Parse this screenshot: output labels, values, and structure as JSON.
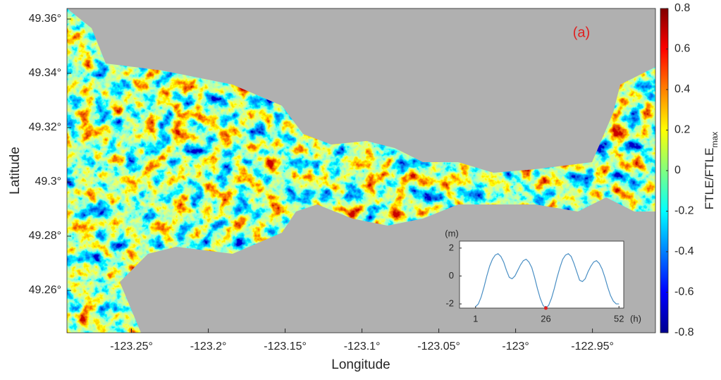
{
  "chart_data": [
    {
      "type": "heatmap",
      "title": "(a)",
      "x_label": "Longitude",
      "y_label": "Latitude",
      "xlim": [
        -123.292,
        -122.909
      ],
      "ylim": [
        49.2444,
        49.3639
      ],
      "xticks": [
        {
          "value": -123.25,
          "label": "-123.25°"
        },
        {
          "value": -123.2,
          "label": "-123.2°"
        },
        {
          "value": -123.15,
          "label": "-123.15°"
        },
        {
          "value": -123.1,
          "label": "-123.1°"
        },
        {
          "value": -123.05,
          "label": "-123.05°"
        },
        {
          "value": -123,
          "label": "-123°"
        },
        {
          "value": -122.95,
          "label": "-122.95°"
        }
      ],
      "yticks": [
        {
          "value": 49.26,
          "label": "49.26°"
        },
        {
          "value": 49.28,
          "label": "49.28°"
        },
        {
          "value": 49.3,
          "label": "49.3°"
        },
        {
          "value": 49.32,
          "label": "49.32°"
        },
        {
          "value": 49.34,
          "label": "49.34°"
        },
        {
          "value": 49.36,
          "label": "49.36°"
        }
      ],
      "colorbar": {
        "label": "FTLE/FTLE",
        "label_sub": "max",
        "lim": [
          -0.8,
          0.8
        ],
        "ticks": [
          -0.8,
          -0.6,
          -0.4,
          -0.2,
          0,
          0.2,
          0.4,
          0.6,
          0.8
        ],
        "colors": [
          "#00008f",
          "#0000ff",
          "#0080ff",
          "#00ffff",
          "#80ff80",
          "#ffff00",
          "#ff8000",
          "#ff0000",
          "#800000"
        ]
      }
    },
    {
      "type": "line",
      "y_unit": "(m)",
      "x_unit": "(h)",
      "x": [
        1,
        2,
        3,
        4,
        5,
        6,
        7,
        8,
        9,
        10,
        11,
        12,
        13,
        14,
        15,
        16,
        17,
        18,
        19,
        20,
        21,
        22,
        23,
        24,
        25,
        26,
        27,
        28,
        29,
        30,
        31,
        32,
        33,
        34,
        35,
        36,
        37,
        38,
        39,
        40,
        41,
        42,
        43,
        44,
        45,
        46,
        47,
        48,
        49,
        50,
        51,
        52
      ],
      "series": [
        {
          "color": "#4a8fc4",
          "values": [
            -2.2,
            -2.0,
            -1.5,
            -0.8,
            0.0,
            0.7,
            1.2,
            1.5,
            1.6,
            1.4,
            1.0,
            0.4,
            -0.1,
            -0.2,
            0.0,
            0.4,
            0.8,
            1.1,
            1.2,
            1.0,
            0.6,
            -0.1,
            -0.9,
            -1.6,
            -2.1,
            -2.3,
            -2.1,
            -1.6,
            -0.9,
            -0.1,
            0.6,
            1.2,
            1.5,
            1.6,
            1.4,
            0.9,
            0.3,
            -0.3,
            -0.4,
            -0.2,
            0.3,
            0.7,
            1.0,
            1.1,
            0.9,
            0.5,
            -0.1,
            -0.8,
            -1.4,
            -1.8,
            -2.0,
            -2.0
          ]
        }
      ],
      "marker": {
        "x": 26,
        "y": -2.3,
        "color": "#e02020"
      },
      "xlim": [
        -4.7,
        53.7
      ],
      "ylim": [
        -2.3,
        2.5
      ],
      "xticks": [
        1,
        26,
        52
      ],
      "yticks": [
        2,
        0,
        -2
      ]
    }
  ]
}
